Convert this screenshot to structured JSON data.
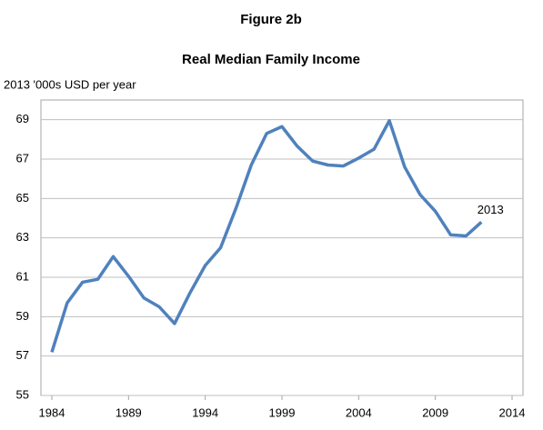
{
  "chart_data": {
    "type": "line",
    "title": "Figure 2b",
    "subtitle": "Real Median Family Income",
    "y_label": "2013 '000s USD per year",
    "annotation": "2013",
    "x": [
      1984,
      1985,
      1986,
      1987,
      1988,
      1989,
      1990,
      1991,
      1992,
      1993,
      1994,
      1995,
      1996,
      1997,
      1998,
      1999,
      2000,
      2001,
      2002,
      2003,
      2004,
      2005,
      2006,
      2007,
      2008,
      2009,
      2010,
      2011,
      2012
    ],
    "series": [
      {
        "name": "Real Median Family Income",
        "color": "#4f81bd",
        "values": [
          57.2,
          59.7,
          60.75,
          60.9,
          62.05,
          61.05,
          59.95,
          59.5,
          58.65,
          60.2,
          61.6,
          62.5,
          64.5,
          66.7,
          68.3,
          68.65,
          67.65,
          66.9,
          66.7,
          66.65,
          67.05,
          67.5,
          68.95,
          66.6,
          65.2,
          64.35,
          63.15,
          63.1,
          63.8
        ]
      }
    ],
    "xlim": [
      1984,
      2014
    ],
    "xticks": [
      1984,
      1989,
      1994,
      1999,
      2004,
      2009,
      2014
    ],
    "ylim": [
      55,
      70
    ],
    "yticks": [
      55,
      57,
      59,
      61,
      63,
      65,
      67,
      69
    ],
    "grid": true
  }
}
